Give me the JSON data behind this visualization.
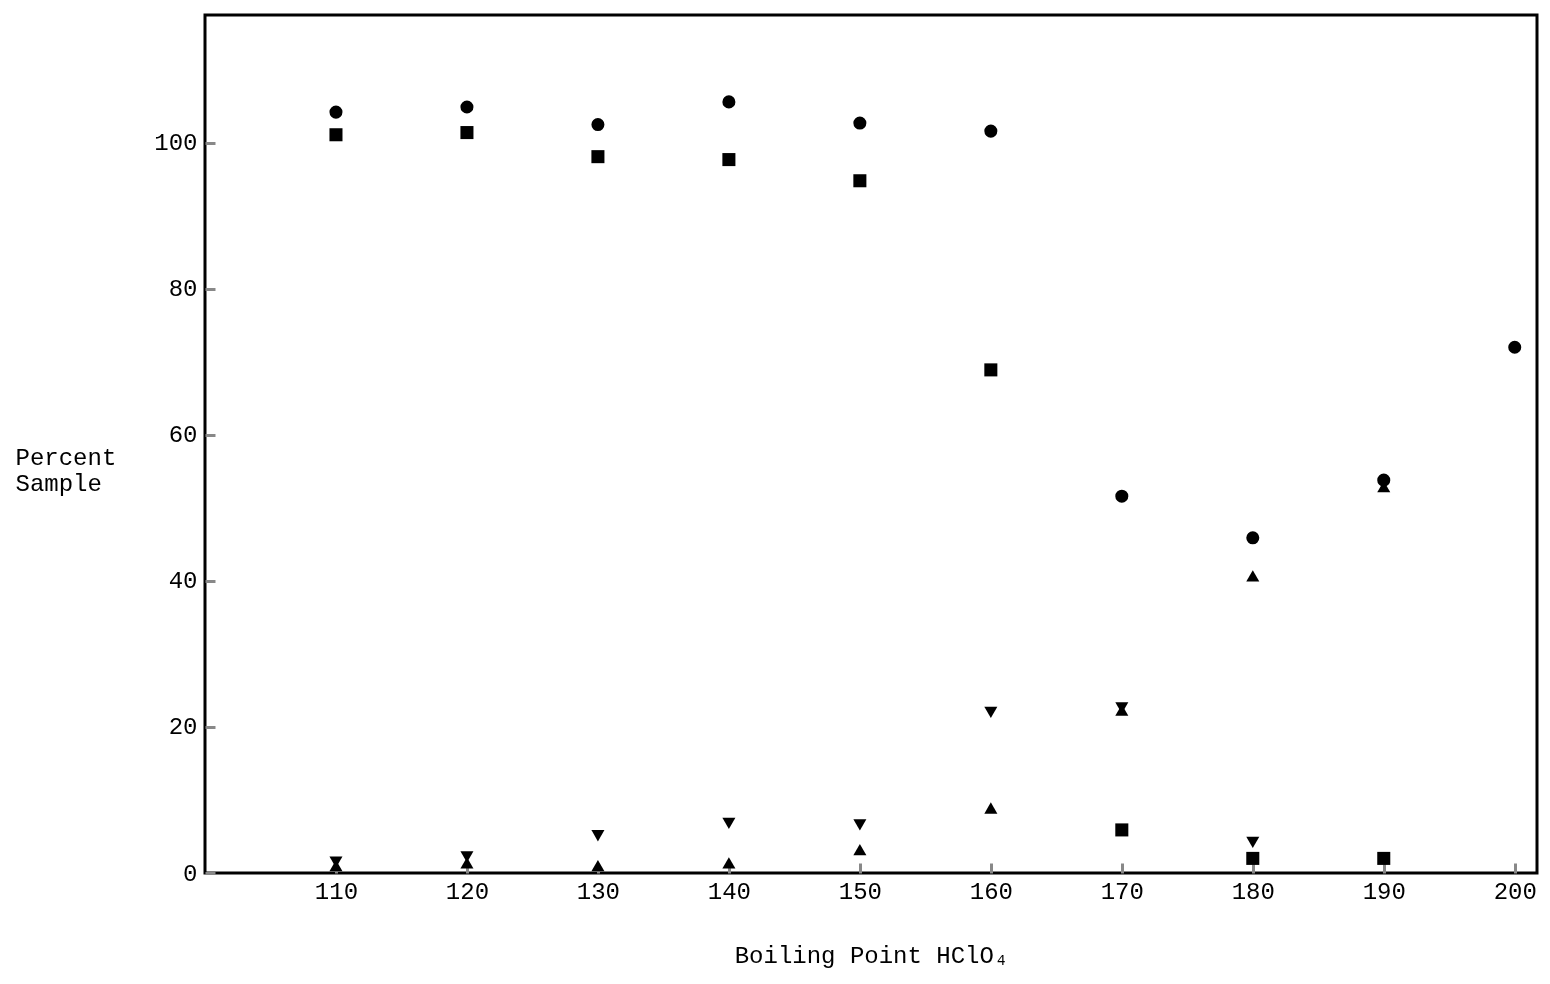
{
  "chart_data": {
    "type": "scatter",
    "xlabel": "Boiling Point HClO₄",
    "ylabel": "Percent\nSample",
    "xlim": [
      100,
      201.7
    ],
    "ylim": [
      0,
      117.5
    ],
    "xticks": [
      110,
      120,
      130,
      140,
      150,
      160,
      170,
      180,
      190,
      200
    ],
    "yticks": [
      0,
      20,
      40,
      60,
      80,
      100
    ],
    "x": [
      110,
      120,
      130,
      140,
      150,
      160,
      170,
      180,
      190,
      200
    ],
    "grid": false,
    "series": [
      {
        "color": "#000000",
        "marker": "circle",
        "values": [
          104.2,
          104.9,
          102.5,
          105.6,
          102.7,
          101.6,
          51.6,
          45.9,
          53.8,
          72
        ]
      },
      {
        "color": "#000000",
        "marker": "square",
        "values": [
          101.1,
          101.4,
          98.1,
          97.7,
          94.8,
          68.9,
          5.9,
          2,
          2,
          null
        ]
      },
      {
        "color": "#000000",
        "marker": "triangle-down",
        "values": [
          1.5,
          2.2,
          5.1,
          6.8,
          6.6,
          22,
          22.6,
          4.2,
          null,
          null
        ]
      },
      {
        "color": "#000000",
        "marker": "triangle",
        "values": [
          1,
          1.4,
          1,
          1.4,
          3.2,
          8.9,
          22.3,
          40.7,
          52.9,
          null
        ]
      }
    ]
  }
}
